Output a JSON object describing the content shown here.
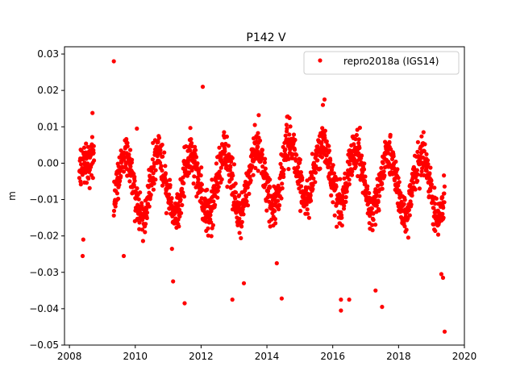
{
  "chart_data": {
    "type": "scatter",
    "title": "P142 V",
    "xlabel": "",
    "ylabel": "m",
    "xlim": [
      2007.85,
      2020.0
    ],
    "ylim": [
      -0.05,
      0.032
    ],
    "xticks": [
      2008,
      2010,
      2012,
      2014,
      2016,
      2018,
      2020
    ],
    "yticks": [
      -0.05,
      -0.04,
      -0.03,
      -0.02,
      -0.01,
      0.0,
      0.01,
      0.02,
      0.03
    ],
    "xtick_labels": [
      "2008",
      "2010",
      "2012",
      "2014",
      "2016",
      "2018",
      "2020"
    ],
    "ytick_labels": [
      "−0.05",
      "−0.04",
      "−0.03",
      "−0.02",
      "−0.01",
      "0.00",
      "0.01",
      "0.02",
      "0.03"
    ],
    "grid": false,
    "legend_position": "top-right",
    "series": [
      {
        "name": "repro2018a (IGS14)",
        "color": "#ff0000",
        "marker": "circle",
        "segments": [
          {
            "t0": 2008.3,
            "t1": 2008.75,
            "trend0": -0.004,
            "trend1": 0.006,
            "amp": 0.003,
            "phase": 0.0,
            "noise": 0.005
          },
          {
            "t0": 2009.35,
            "t1": 2019.4,
            "mean": -0.006,
            "amp": 0.008,
            "phase": 0.55,
            "noise": 0.005
          }
        ],
        "outliers": [
          [
            2009.35,
            0.028
          ],
          [
            2012.05,
            0.021
          ],
          [
            2008.4,
            -0.0255
          ],
          [
            2008.42,
            -0.021
          ],
          [
            2009.65,
            -0.0255
          ],
          [
            2011.5,
            -0.0385
          ],
          [
            2012.95,
            -0.0375
          ],
          [
            2013.3,
            -0.033
          ],
          [
            2014.45,
            -0.0372
          ],
          [
            2014.3,
            -0.0275
          ],
          [
            2016.25,
            -0.0405
          ],
          [
            2016.25,
            -0.0375
          ],
          [
            2016.5,
            -0.0375
          ],
          [
            2017.5,
            -0.0395
          ],
          [
            2017.3,
            -0.035
          ],
          [
            2019.4,
            -0.0463
          ],
          [
            2019.3,
            -0.0305
          ],
          [
            2019.35,
            -0.0315
          ],
          [
            2015.75,
            0.0175
          ],
          [
            2015.7,
            0.016
          ],
          [
            2013.75,
            0.0132
          ],
          [
            2010.05,
            0.0095
          ],
          [
            2011.15,
            -0.0325
          ],
          [
            2008.7,
            0.0138
          ]
        ]
      }
    ]
  }
}
